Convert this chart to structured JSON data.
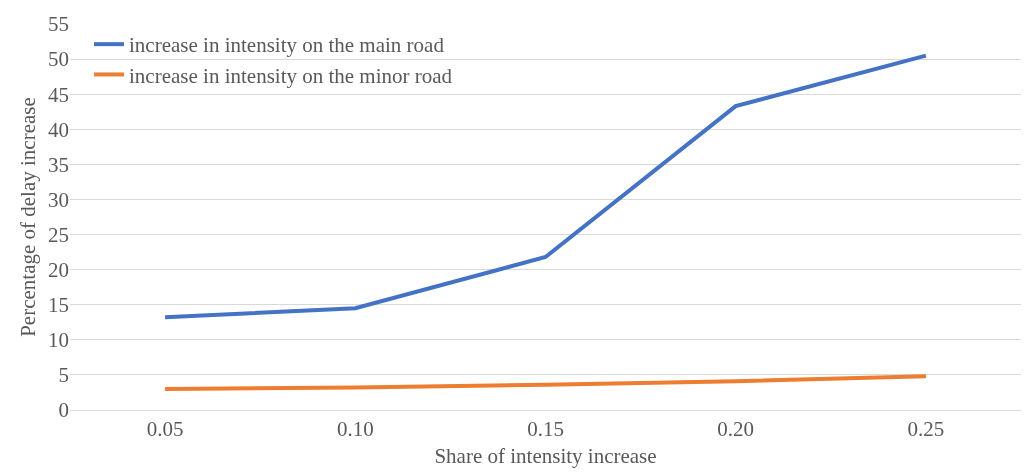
{
  "chart_data": {
    "type": "line",
    "xlabel": "Share of intensity increase",
    "ylabel": "Percentage of delay increase",
    "categories": [
      "0.05",
      "0.10",
      "0.15",
      "0.20",
      "0.25"
    ],
    "series": [
      {
        "name": "increase in intensity on the main road",
        "color": "#4472c4",
        "values": [
          13.2,
          14.5,
          21.8,
          43.3,
          50.5
        ]
      },
      {
        "name": "increase in intensity on the minor road",
        "color": "#ed7d31",
        "values": [
          3.0,
          3.2,
          3.6,
          4.1,
          4.8
        ]
      }
    ],
    "ylim": [
      0,
      55
    ],
    "yticks": [
      0,
      5,
      10,
      15,
      20,
      25,
      30,
      35,
      40,
      45,
      50,
      55
    ],
    "grid": "y",
    "legend": "top left",
    "marker": "none",
    "line_style": "solid"
  }
}
